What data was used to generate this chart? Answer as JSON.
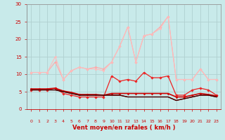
{
  "background_color": "#c8eaea",
  "grid_color": "#b0d0d0",
  "xlabel": "Vent moyen/en rafales ( km/h )",
  "xlabel_color": "#cc0000",
  "tick_color": "#cc0000",
  "xlim": [
    -0.5,
    23.5
  ],
  "ylim": [
    0,
    30
  ],
  "yticks": [
    0,
    5,
    10,
    15,
    20,
    25,
    30
  ],
  "xticks": [
    0,
    1,
    2,
    3,
    4,
    5,
    6,
    7,
    8,
    9,
    10,
    11,
    12,
    13,
    14,
    15,
    16,
    17,
    18,
    19,
    20,
    21,
    22,
    23
  ],
  "series": [
    {
      "x": [
        0,
        1,
        2,
        3,
        4,
        5,
        6,
        7,
        8,
        9,
        10,
        11,
        12,
        13,
        14,
        15,
        16,
        17,
        18,
        19,
        20,
        21,
        22,
        23
      ],
      "y": [
        10.5,
        10.5,
        10.5,
        13.5,
        8.5,
        11.0,
        12.0,
        11.5,
        12.0,
        11.5,
        13.5,
        18.0,
        23.5,
        13.5,
        21.0,
        21.5,
        23.5,
        26.5,
        8.5,
        8.5,
        8.5,
        11.5,
        8.5,
        8.5
      ],
      "color": "#ffaaaa",
      "lw": 0.8,
      "marker": "D",
      "ms": 1.8
    },
    {
      "x": [
        0,
        1,
        2,
        3,
        4,
        5,
        6,
        7,
        8,
        9,
        10,
        11,
        12,
        13,
        14,
        15,
        16,
        17,
        18,
        19,
        20,
        21,
        22,
        23
      ],
      "y": [
        10.5,
        10.5,
        10.5,
        15.0,
        8.5,
        11.0,
        12.0,
        11.5,
        11.5,
        11.0,
        13.5,
        18.0,
        23.5,
        13.5,
        21.0,
        21.5,
        23.0,
        26.5,
        8.5,
        8.5,
        8.5,
        11.5,
        8.5,
        8.5
      ],
      "color": "#ffbbbb",
      "lw": 0.8,
      "marker": "D",
      "ms": 1.5
    },
    {
      "x": [
        0,
        1,
        2,
        3,
        4,
        5,
        6,
        7,
        8,
        9,
        10,
        11,
        12,
        13,
        14,
        15,
        16,
        17,
        18,
        19,
        20,
        21,
        22,
        23
      ],
      "y": [
        5.5,
        5.5,
        5.5,
        6.0,
        4.5,
        4.0,
        3.5,
        3.5,
        3.5,
        3.5,
        9.5,
        8.0,
        8.5,
        8.0,
        10.5,
        9.0,
        9.0,
        9.5,
        4.0,
        4.0,
        5.5,
        6.0,
        5.5,
        4.0
      ],
      "color": "#ee2222",
      "lw": 0.9,
      "marker": "D",
      "ms": 1.8
    },
    {
      "x": [
        0,
        1,
        2,
        3,
        4,
        5,
        6,
        7,
        8,
        9,
        10,
        11,
        12,
        13,
        14,
        15,
        16,
        17,
        18,
        19,
        20,
        21,
        22,
        23
      ],
      "y": [
        5.8,
        5.8,
        5.8,
        6.0,
        5.2,
        4.8,
        4.2,
        4.2,
        4.2,
        4.0,
        4.5,
        4.5,
        4.5,
        4.5,
        4.5,
        4.5,
        4.5,
        4.5,
        3.5,
        3.5,
        4.0,
        4.5,
        4.2,
        3.8
      ],
      "color": "#cc0000",
      "lw": 1.2,
      "marker": "D",
      "ms": 1.5
    },
    {
      "x": [
        0,
        1,
        2,
        3,
        4,
        5,
        6,
        7,
        8,
        9,
        10,
        11,
        12,
        13,
        14,
        15,
        16,
        17,
        18,
        19,
        20,
        21,
        22,
        23
      ],
      "y": [
        5.5,
        5.5,
        5.5,
        5.5,
        5.0,
        4.5,
        4.0,
        4.0,
        4.0,
        4.0,
        4.0,
        4.0,
        3.5,
        3.5,
        3.5,
        3.5,
        3.5,
        3.5,
        2.5,
        3.0,
        3.5,
        4.0,
        4.0,
        3.5
      ],
      "color": "#990000",
      "lw": 1.0,
      "marker": null,
      "ms": 0
    },
    {
      "x": [
        0,
        1,
        2,
        3,
        4,
        5,
        6,
        7,
        8,
        9,
        10,
        11,
        12,
        13,
        14,
        15,
        16,
        17,
        18,
        19,
        20,
        21,
        22,
        23
      ],
      "y": [
        5.5,
        5.5,
        5.5,
        5.5,
        5.0,
        4.5,
        4.0,
        4.0,
        4.0,
        4.0,
        4.0,
        4.0,
        3.5,
        3.5,
        3.5,
        3.5,
        3.5,
        3.5,
        2.5,
        3.0,
        3.5,
        4.0,
        4.0,
        3.5
      ],
      "color": "#330000",
      "lw": 0.8,
      "marker": null,
      "ms": 0
    }
  ],
  "arrow_angles": [
    225,
    210,
    195,
    210,
    210,
    195,
    175,
    175,
    5,
    5,
    225,
    225,
    225,
    225,
    210,
    195,
    195,
    195,
    195,
    195,
    195,
    225,
    210,
    195
  ]
}
